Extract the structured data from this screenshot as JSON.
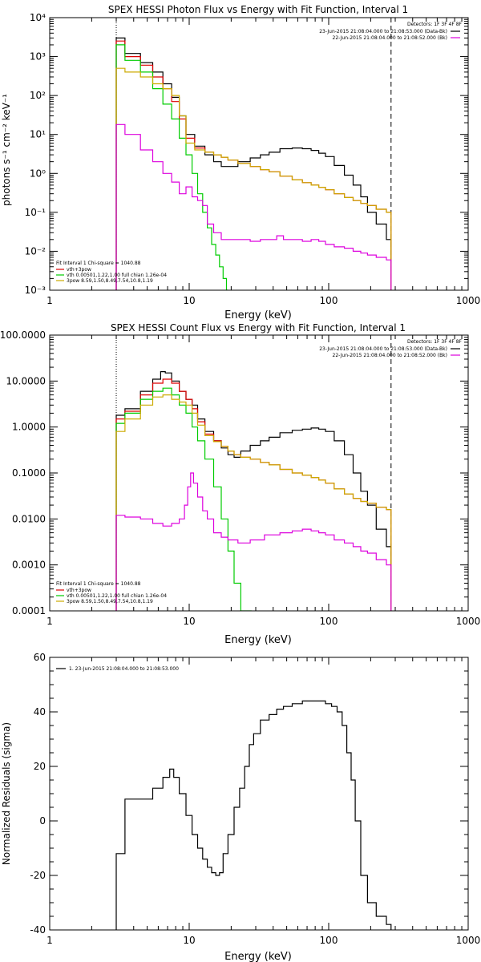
{
  "chart_data": [
    {
      "type": "line",
      "title": "SPEX HESSI Photon Flux vs Energy with Fit Function, Interval 1",
      "xlabel": "Energy (keV)",
      "ylabel": "photons s⁻¹ cm⁻² keV⁻¹",
      "xscale": "log",
      "yscale": "log",
      "xlim": [
        1,
        1000
      ],
      "ylim": [
        0.001,
        10000
      ],
      "xticks": [
        "1",
        "10",
        "100",
        "1000"
      ],
      "yticks": [
        "10⁻³",
        "10⁻²",
        "10⁻¹",
        "10⁰",
        "10¹",
        "10²",
        "10³",
        "10⁴"
      ],
      "vlines": [
        {
          "x": 3,
          "style": "dotted"
        },
        {
          "x": 280,
          "style": "dashed"
        }
      ],
      "legend_top_right": {
        "header": "Detectors: 1F 3F 4F 8F",
        "entries": [
          {
            "text": "23-Jun-2015 21:08:04.000 to 21:08:53.000 (Data-Bk)",
            "color": "#000000"
          },
          {
            "text": "22-Jun-2015 21:08:04.000 to 21:08:52.000 (Bk)",
            "color": "#dd00dd"
          }
        ]
      },
      "legend_bottom_left": {
        "header": "Fit Interval 1    Chi-square = 1040.88",
        "entries": [
          {
            "text": "vth+3pow",
            "color": "#dd0000"
          },
          {
            "text": "vth 0.00501,1.22,1.00  full chian 1.26e-04",
            "color": "#00cc00"
          },
          {
            "text": "3pow 8.59,1.50,8.49,7.54,10.8,1.19",
            "color": "#ccaa00"
          }
        ]
      },
      "series": [
        {
          "role": "data",
          "color": "#000000",
          "x": [
            3,
            4,
            5,
            6,
            7,
            8,
            9,
            10,
            12,
            14,
            16,
            18,
            20,
            25,
            30,
            35,
            40,
            50,
            60,
            70,
            80,
            90,
            100,
            120,
            140,
            160,
            180,
            200,
            240,
            280
          ],
          "y": [
            3000,
            1200,
            700,
            400,
            200,
            90,
            30,
            10,
            5,
            3,
            2,
            1.5,
            1.5,
            2,
            2.5,
            3,
            3.5,
            4.3,
            4.5,
            4.3,
            3.9,
            3.3,
            2.7,
            1.6,
            0.9,
            0.5,
            0.25,
            0.1,
            0.05,
            0.02
          ]
        },
        {
          "role": "vth+3pow",
          "color": "#dd0000",
          "x": [
            3,
            4,
            5,
            6,
            7,
            8,
            9,
            10,
            12,
            14,
            16,
            18,
            20,
            25,
            30,
            35,
            40,
            50,
            60,
            70,
            80,
            90,
            100,
            120,
            140,
            160,
            180,
            200,
            240,
            280
          ],
          "y": [
            2500,
            1000,
            600,
            300,
            150,
            70,
            25,
            8,
            4.5,
            3.5,
            3,
            2.6,
            2.2,
            1.8,
            1.5,
            1.25,
            1.1,
            0.85,
            0.68,
            0.58,
            0.5,
            0.44,
            0.38,
            0.3,
            0.24,
            0.2,
            0.17,
            0.15,
            0.12,
            0.1
          ]
        },
        {
          "role": "vth",
          "color": "#00cc00",
          "x": [
            3,
            4,
            5,
            6,
            7,
            8,
            9,
            10,
            11,
            12,
            13,
            14,
            15,
            16,
            17,
            18,
            19
          ],
          "y": [
            2000,
            800,
            400,
            150,
            60,
            25,
            8,
            3,
            1,
            0.3,
            0.1,
            0.04,
            0.015,
            0.008,
            0.004,
            0.002,
            0.001
          ]
        },
        {
          "role": "3pow",
          "color": "#ccaa00",
          "x": [
            3,
            4,
            5,
            6,
            7,
            8,
            9,
            10,
            12,
            14,
            16,
            18,
            20,
            25,
            30,
            35,
            40,
            50,
            60,
            70,
            80,
            90,
            100,
            120,
            140,
            160,
            180,
            200,
            240,
            280
          ],
          "y": [
            500,
            400,
            300,
            200,
            150,
            100,
            30,
            6,
            4,
            3.5,
            3,
            2.6,
            2.2,
            1.8,
            1.5,
            1.25,
            1.1,
            0.85,
            0.68,
            0.58,
            0.5,
            0.44,
            0.38,
            0.3,
            0.24,
            0.2,
            0.17,
            0.15,
            0.12,
            0.1
          ]
        },
        {
          "role": "background",
          "color": "#dd00dd",
          "x": [
            3,
            4,
            5,
            6,
            7,
            8,
            9,
            10,
            11,
            12,
            13,
            14,
            16,
            18,
            20,
            25,
            30,
            35,
            40,
            45,
            50,
            60,
            70,
            80,
            90,
            100,
            120,
            140,
            160,
            180,
            200,
            240,
            280
          ],
          "y": [
            18,
            10,
            4,
            2,
            1,
            0.6,
            0.3,
            0.45,
            0.25,
            0.2,
            0.15,
            0.05,
            0.03,
            0.02,
            0.02,
            0.02,
            0.018,
            0.02,
            0.02,
            0.025,
            0.02,
            0.02,
            0.018,
            0.02,
            0.018,
            0.015,
            0.013,
            0.012,
            0.01,
            0.009,
            0.008,
            0.007,
            0.006
          ]
        }
      ]
    },
    {
      "type": "line",
      "title": "SPEX HESSI Count Flux vs Energy with Fit Function, Interval 1",
      "xlabel": "Energy (keV)",
      "ylabel": "",
      "xscale": "log",
      "yscale": "log",
      "xlim": [
        1,
        1000
      ],
      "ylim": [
        0.0001,
        100
      ],
      "xticks": [
        "1",
        "10",
        "100",
        "1000"
      ],
      "yticks": [
        "0.0001",
        "0.0010",
        "0.0100",
        "0.1000",
        "1.0000",
        "10.0000",
        "100.0000"
      ],
      "vlines": [
        {
          "x": 3,
          "style": "dotted"
        },
        {
          "x": 280,
          "style": "dashed"
        }
      ],
      "legend_top_right": {
        "header": "Detectors: 1F 3F 4F 8F",
        "entries": [
          {
            "text": "23-Jun-2015 21:08:04.000 to 21:08:53.000 (Data-Bk)",
            "color": "#000000"
          },
          {
            "text": "22-Jun-2015 21:08:04.000 to 21:08:52.000 (Bk)",
            "color": "#dd00dd"
          }
        ]
      },
      "legend_bottom_left": {
        "header": "Fit Interval 1    Chi-square = 1040.88",
        "entries": [
          {
            "text": "vth+3pow",
            "color": "#dd0000"
          },
          {
            "text": "vth 0.00501,1.22,1.00  full chian 1.26e-04",
            "color": "#00cc00"
          },
          {
            "text": "3pow 8.59,1.50,8.49,7.54,10.8,1.19",
            "color": "#ccaa00"
          }
        ]
      },
      "series": [
        {
          "role": "data",
          "color": "#000000",
          "x": [
            3,
            4,
            5,
            6,
            6.5,
            7,
            8,
            9,
            10,
            11,
            12,
            14,
            16,
            18,
            20,
            22,
            25,
            30,
            35,
            40,
            50,
            60,
            70,
            80,
            90,
            100,
            120,
            140,
            160,
            180,
            200,
            240,
            280
          ],
          "y": [
            1.8,
            2.5,
            6,
            11,
            16,
            15,
            10,
            6,
            4,
            3,
            1.5,
            0.8,
            0.5,
            0.35,
            0.25,
            0.22,
            0.3,
            0.4,
            0.5,
            0.6,
            0.75,
            0.85,
            0.9,
            0.95,
            0.9,
            0.8,
            0.5,
            0.25,
            0.1,
            0.04,
            0.02,
            0.006,
            0.0025
          ]
        },
        {
          "role": "vth+3pow",
          "color": "#dd0000",
          "x": [
            3,
            4,
            5,
            6,
            7,
            8,
            9,
            10,
            11,
            12,
            14,
            16,
            18,
            20,
            22,
            25,
            30,
            35,
            40,
            50,
            60,
            70,
            80,
            90,
            100,
            120,
            140,
            160,
            180,
            200,
            240,
            280
          ],
          "y": [
            1.5,
            2.2,
            5,
            9,
            11,
            9,
            6,
            4,
            2.5,
            1.3,
            0.7,
            0.5,
            0.38,
            0.3,
            0.25,
            0.22,
            0.2,
            0.17,
            0.15,
            0.12,
            0.1,
            0.09,
            0.08,
            0.07,
            0.06,
            0.045,
            0.035,
            0.028,
            0.024,
            0.022,
            0.018,
            0.016
          ]
        },
        {
          "role": "vth",
          "color": "#00cc00",
          "x": [
            3,
            4,
            5,
            6,
            7,
            8,
            9,
            10,
            11,
            12,
            14,
            16,
            18,
            20,
            22,
            25,
            28
          ],
          "y": [
            1.2,
            2,
            4,
            6,
            7,
            5,
            3,
            2,
            1,
            0.5,
            0.2,
            0.05,
            0.01,
            0.002,
            0.0004,
            0.0001,
            0.0001
          ]
        },
        {
          "role": "3pow",
          "color": "#ccaa00",
          "x": [
            3,
            4,
            5,
            6,
            7,
            8,
            9,
            10,
            11,
            12,
            14,
            16,
            18,
            20,
            22,
            25,
            30,
            35,
            40,
            50,
            60,
            70,
            80,
            90,
            100,
            120,
            140,
            160,
            180,
            200,
            240,
            280
          ],
          "y": [
            0.8,
            1.5,
            3,
            4.5,
            5,
            4,
            3.5,
            3,
            2,
            1.1,
            0.65,
            0.48,
            0.38,
            0.3,
            0.25,
            0.22,
            0.2,
            0.17,
            0.15,
            0.12,
            0.1,
            0.09,
            0.08,
            0.07,
            0.06,
            0.045,
            0.035,
            0.028,
            0.024,
            0.022,
            0.018,
            0.016
          ]
        },
        {
          "role": "background",
          "color": "#dd00dd",
          "x": [
            3,
            4,
            5,
            6,
            7,
            8,
            9,
            9.5,
            10,
            10.5,
            11,
            12,
            13,
            14,
            16,
            18,
            20,
            25,
            30,
            40,
            50,
            60,
            70,
            80,
            90,
            100,
            120,
            140,
            160,
            180,
            200,
            240,
            280
          ],
          "y": [
            0.012,
            0.011,
            0.01,
            0.008,
            0.007,
            0.008,
            0.01,
            0.02,
            0.05,
            0.1,
            0.06,
            0.03,
            0.015,
            0.01,
            0.005,
            0.004,
            0.0035,
            0.003,
            0.0035,
            0.0045,
            0.005,
            0.0055,
            0.006,
            0.0055,
            0.005,
            0.0045,
            0.0035,
            0.003,
            0.0025,
            0.002,
            0.0018,
            0.0013,
            0.001
          ]
        }
      ]
    },
    {
      "type": "line",
      "title": "",
      "xlabel": "Energy (keV)",
      "ylabel": "Normalized Residuals (sigma)",
      "xscale": "log",
      "yscale": "linear",
      "xlim": [
        1,
        1000
      ],
      "ylim": [
        -40,
        60
      ],
      "xticks": [
        "1",
        "10",
        "100",
        "1000"
      ],
      "yticks": [
        "-40",
        "-20",
        "0",
        "20",
        "40",
        "60"
      ],
      "legend_top_left": {
        "entries": [
          {
            "text": "1. 23-Jun-2015 21:08:04.000 to 21:08:53.000",
            "color": "#000000"
          }
        ]
      },
      "series": [
        {
          "role": "residuals",
          "color": "#000000",
          "x": [
            3,
            4,
            5,
            6,
            7,
            7.5,
            8,
            9,
            10,
            11,
            12,
            13,
            14,
            15,
            16,
            17,
            18,
            20,
            22,
            24,
            26,
            28,
            30,
            35,
            40,
            45,
            50,
            60,
            70,
            80,
            90,
            100,
            110,
            120,
            130,
            140,
            150,
            160,
            180,
            200,
            240,
            280
          ],
          "y": [
            -12,
            8,
            8,
            12,
            16,
            19,
            16,
            10,
            2,
            -5,
            -10,
            -14,
            -17,
            -19,
            -20,
            -19,
            -12,
            -5,
            5,
            12,
            20,
            28,
            32,
            37,
            39,
            41,
            42,
            43,
            44,
            44,
            44,
            43,
            42,
            40,
            35,
            25,
            15,
            0,
            -20,
            -30,
            -35,
            -38
          ]
        }
      ]
    }
  ]
}
